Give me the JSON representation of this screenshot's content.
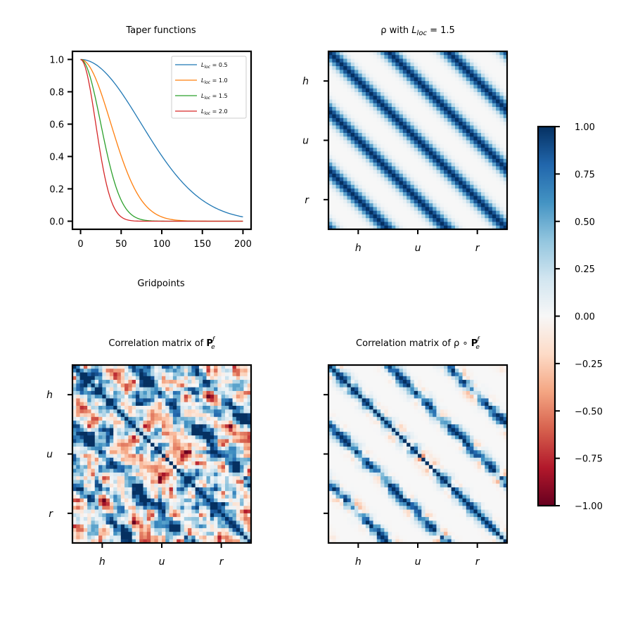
{
  "chart_data": [
    {
      "type": "line",
      "title": "Taper functions",
      "xlabel": "Gridpoints",
      "ylabel": "",
      "xlim": [
        -10,
        210
      ],
      "ylim": [
        -0.05,
        1.05
      ],
      "xticks": [
        "0",
        "50",
        "100",
        "150",
        "200"
      ],
      "yticks": [
        "0.0",
        "0.2",
        "0.4",
        "0.6",
        "0.8",
        "1.0"
      ],
      "legend_position": "top-right",
      "series": [
        {
          "name": "L_loc = 0.5",
          "label_sub": "loc",
          "label_rest": " = 0.5",
          "color": "#1f77b4",
          "scale": 105.0
        },
        {
          "name": "L_loc = 1.0",
          "label_sub": "loc",
          "label_rest": " = 1.0",
          "color": "#ff7f0e",
          "scale": 52.5
        },
        {
          "name": "L_loc = 1.5",
          "label_sub": "loc",
          "label_rest": " = 1.5",
          "color": "#2ca02c",
          "scale": 35.0
        },
        {
          "name": "L_loc = 2.0",
          "label_sub": "loc",
          "label_rest": " = 2.0",
          "color": "#d62728",
          "scale": 26.25
        }
      ],
      "x": [
        0,
        20,
        40,
        60,
        80,
        100,
        120,
        140,
        160,
        180,
        200
      ],
      "values_note_free": true
    },
    {
      "type": "heatmap",
      "title_prefix": "ρ with ",
      "title_var": "L",
      "title_sub": "loc",
      "title_suffix": " = 1.5",
      "xtick_labels": [
        "h",
        "u",
        "r"
      ],
      "ytick_labels": [
        "h",
        "u",
        "r"
      ],
      "pattern": "periodic diagonal bands",
      "period_fraction": 0.3333
    },
    {
      "type": "heatmap",
      "title_prefix": "Correlation matrix of ",
      "title_bold": "P",
      "title_sub": "e",
      "title_sup": "f",
      "xtick_labels": [
        "h",
        "u",
        "r"
      ],
      "ytick_labels": [
        "h",
        "u",
        "r"
      ],
      "pattern": "noisy correlation matrix"
    },
    {
      "type": "heatmap",
      "title_prefix": "Correlation matrix of ρ ∘ ",
      "title_bold": "P",
      "title_sub": "e",
      "title_sup": "f",
      "xtick_labels": [
        "h",
        "u",
        "r"
      ],
      "ytick_labels": [
        "",
        "",
        ""
      ],
      "pattern": "tapered correlation matrix"
    }
  ],
  "colorbar": {
    "range": [
      -1.0,
      1.0
    ],
    "tick_labels": [
      "1.00",
      "0.75",
      "0.50",
      "0.25",
      "0.00",
      "−0.25",
      "−0.50",
      "−0.75",
      "−1.00"
    ],
    "colors": [
      "#67001f",
      "#b2182b",
      "#d6604d",
      "#f4a582",
      "#fddbc7",
      "#f7f7f7",
      "#d1e5f0",
      "#92c5de",
      "#4393c3",
      "#2166ac",
      "#053061"
    ]
  }
}
